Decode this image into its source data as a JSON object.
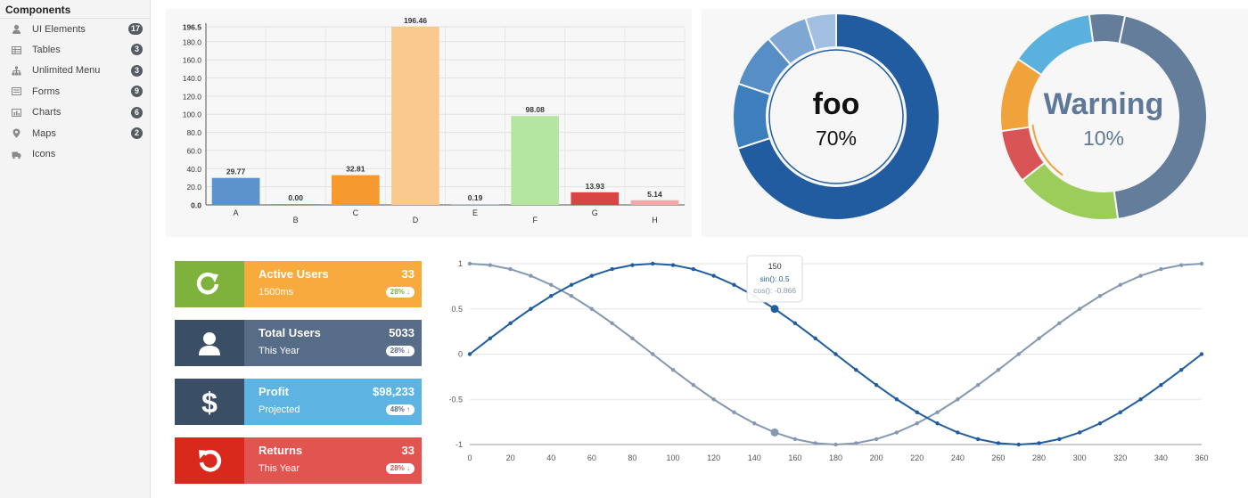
{
  "sidebar": {
    "title": "Components",
    "items": [
      {
        "label": "UI Elements",
        "badge": "17",
        "icon": "user-icon"
      },
      {
        "label": "Tables",
        "badge": "3",
        "icon": "table-icon"
      },
      {
        "label": "Unlimited Menu",
        "badge": "3",
        "icon": "sitemap-icon"
      },
      {
        "label": "Forms",
        "badge": "9",
        "icon": "form-icon"
      },
      {
        "label": "Charts",
        "badge": "6",
        "icon": "bar-chart-icon"
      },
      {
        "label": "Maps",
        "badge": "2",
        "icon": "map-marker-icon"
      },
      {
        "label": "Icons",
        "badge": "",
        "icon": "truck-icon"
      }
    ]
  },
  "donuts": [
    {
      "label": "foo",
      "percent": "70%",
      "value": 0.7,
      "text_color": "#111111",
      "percent_color": "#111111"
    },
    {
      "label": "Warning",
      "percent": "10%",
      "value": 0.1,
      "text_color": "#5e7898",
      "percent_color": "#5e7898"
    }
  ],
  "stats": [
    {
      "title": "Active Users",
      "value": "33",
      "sub": "1500ms",
      "pill": "28%",
      "pill_arrow": "down",
      "icon": "refresh-icon",
      "icon_bg": "#7fb13d",
      "bg": "#f6ab3c",
      "pill_color": "#7fb13d"
    },
    {
      "title": "Total Users",
      "value": "5033",
      "sub": "This Year",
      "pill": "28%",
      "pill_arrow": "down",
      "icon": "user-icon",
      "icon_bg": "#3a4f66",
      "bg": "#566c87",
      "pill_color": "#566c87"
    },
    {
      "title": "Profit",
      "value": "$98,233",
      "sub": "Projected",
      "pill": "48%",
      "pill_arrow": "up",
      "icon": "dollar-icon",
      "icon_bg": "#3a4f66",
      "bg": "#5db4e3",
      "pill_color": "#566c87"
    },
    {
      "title": "Returns",
      "value": "33",
      "sub": "This Year",
      "pill": "28%",
      "pill_arrow": "down",
      "icon": "undo-icon",
      "icon_bg": "#d9291c",
      "bg": "#e25450",
      "pill_color": "#e25450"
    }
  ],
  "chart_data": [
    {
      "type": "bar",
      "categories": [
        "A",
        "B",
        "C",
        "D",
        "E",
        "F",
        "G",
        "H"
      ],
      "values": [
        29.77,
        0.0,
        32.81,
        196.46,
        0.19,
        98.08,
        13.93,
        5.14
      ],
      "value_labels": [
        "29.77",
        "0.00",
        "32.81",
        "196.46",
        "0.19",
        "98.08",
        "13.93",
        "5.14"
      ],
      "colors": [
        "#5b93cc",
        "#7a9fc8",
        "#f6992f",
        "#f9c98d",
        "#b8c6d8",
        "#b4e6a2",
        "#d94444",
        "#f4a8a8"
      ],
      "ylim": [
        0,
        196.5
      ],
      "yticks": [
        "196.5",
        "180.0",
        "160.0",
        "140.0",
        "120.0",
        "100.0",
        "80.0",
        "60.0",
        "40.0",
        "20.0",
        "0.0"
      ],
      "grid": true
    },
    {
      "type": "line",
      "series": [
        {
          "name": "sin()",
          "color": "#1f5d9e",
          "x": [
            0,
            10,
            20,
            30,
            40,
            50,
            60,
            70,
            80,
            90,
            100,
            110,
            120,
            130,
            140,
            150,
            160,
            170,
            180,
            190,
            200,
            210,
            220,
            230,
            240,
            250,
            260,
            270,
            280,
            290,
            300,
            310,
            320,
            330,
            340,
            350,
            360
          ],
          "y": [
            0,
            0.174,
            0.342,
            0.5,
            0.643,
            0.766,
            0.866,
            0.94,
            0.985,
            1,
            0.985,
            0.94,
            0.866,
            0.766,
            0.643,
            0.5,
            0.342,
            0.174,
            0,
            -0.174,
            -0.342,
            -0.5,
            -0.643,
            -0.766,
            -0.866,
            -0.94,
            -0.985,
            -1,
            -0.985,
            -0.94,
            -0.866,
            -0.766,
            -0.643,
            -0.5,
            -0.342,
            -0.174,
            0
          ]
        },
        {
          "name": "cos()",
          "color": "#8499b1",
          "x": [
            0,
            10,
            20,
            30,
            40,
            50,
            60,
            70,
            80,
            90,
            100,
            110,
            120,
            130,
            140,
            150,
            160,
            170,
            180,
            190,
            200,
            210,
            220,
            230,
            240,
            250,
            260,
            270,
            280,
            290,
            300,
            310,
            320,
            330,
            340,
            350,
            360
          ],
          "y": [
            1,
            0.985,
            0.94,
            0.866,
            0.766,
            0.643,
            0.5,
            0.342,
            0.174,
            0,
            -0.174,
            -0.342,
            -0.5,
            -0.643,
            -0.766,
            -0.866,
            -0.94,
            -0.985,
            -1,
            -0.985,
            -0.94,
            -0.866,
            -0.766,
            -0.643,
            -0.5,
            -0.342,
            -0.174,
            0,
            0.174,
            0.342,
            0.5,
            0.643,
            0.766,
            0.866,
            0.94,
            0.985,
            1
          ]
        }
      ],
      "xticks": [
        "0",
        "20",
        "40",
        "60",
        "80",
        "100",
        "120",
        "140",
        "160",
        "180",
        "200",
        "220",
        "240",
        "260",
        "280",
        "300",
        "320",
        "340",
        "360"
      ],
      "yticks": [
        "1",
        "0.5",
        "0",
        "-0.5",
        "-1"
      ],
      "xlim": [
        0,
        360
      ],
      "ylim": [
        -1,
        1
      ],
      "grid": true,
      "tooltip": {
        "x": 150,
        "title": "150",
        "lines": [
          "sin(): 0.5",
          "cos(): -0.866"
        ]
      }
    }
  ]
}
